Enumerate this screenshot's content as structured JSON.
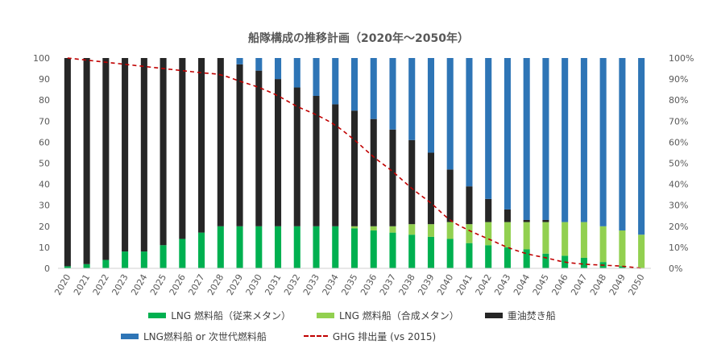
{
  "chart_data": {
    "type": "bar",
    "title": "船隊構成の推移計画（2020年～2050年）",
    "categories": [
      "2020",
      "2021",
      "2022",
      "2023",
      "2024",
      "2025",
      "2026",
      "2027",
      "2028",
      "2029",
      "2030",
      "2031",
      "2032",
      "2033",
      "2034",
      "2035",
      "2036",
      "2037",
      "2038",
      "2039",
      "2040",
      "2041",
      "2042",
      "2043",
      "2044",
      "2045",
      "2046",
      "2047",
      "2048",
      "2049",
      "2050"
    ],
    "stacked": true,
    "ylim": [
      0,
      100
    ],
    "yticks": [
      "0",
      "10",
      "20",
      "30",
      "40",
      "50",
      "60",
      "70",
      "80",
      "90",
      "100"
    ],
    "y2lim": [
      0,
      1
    ],
    "y2ticks": [
      "0%",
      "10%",
      "20%",
      "30%",
      "40%",
      "50%",
      "60%",
      "70%",
      "80%",
      "90%",
      "100%"
    ],
    "grid": false,
    "legend_position": "bottom",
    "series": [
      {
        "name": "LNG 燃料船（従来メタン）",
        "color": "#00b050",
        "values": [
          1,
          2,
          4,
          8,
          8,
          11,
          14,
          17,
          20,
          20,
          20,
          20,
          20,
          20,
          20,
          19,
          18,
          17,
          16,
          15,
          14,
          12,
          11,
          10,
          9,
          7,
          6,
          5,
          3,
          1,
          0
        ]
      },
      {
        "name": "LNG 燃料船（合成メタン）",
        "color": "#92d050",
        "values": [
          0,
          0,
          0,
          0,
          0,
          0,
          0,
          0,
          0,
          0,
          0,
          0,
          0,
          0,
          0,
          1,
          2,
          3,
          5,
          6,
          8,
          9,
          11,
          12,
          13,
          15,
          16,
          17,
          17,
          17,
          16
        ]
      },
      {
        "name": "重油焚き船",
        "color": "#262626",
        "values": [
          99,
          98,
          96,
          92,
          92,
          89,
          86,
          83,
          80,
          77,
          74,
          70,
          66,
          62,
          58,
          55,
          51,
          46,
          40,
          34,
          25,
          18,
          11,
          6,
          1,
          1,
          0,
          0,
          0,
          0,
          0
        ]
      },
      {
        "name": "LNG燃料船 or 次世代燃料船",
        "color": "#2e75b6",
        "values": [
          0,
          0,
          0,
          0,
          0,
          0,
          0,
          0,
          0,
          3,
          6,
          10,
          14,
          18,
          22,
          25,
          29,
          34,
          39,
          45,
          53,
          61,
          67,
          72,
          77,
          77,
          78,
          78,
          80,
          82,
          84
        ]
      }
    ],
    "line_series": {
      "name": "GHG 排出量 (vs 2015)",
      "color": "#c00000",
      "axis": "right",
      "values": [
        1.0,
        0.99,
        0.98,
        0.97,
        0.96,
        0.95,
        0.94,
        0.93,
        0.92,
        0.89,
        0.86,
        0.82,
        0.77,
        0.73,
        0.68,
        0.61,
        0.53,
        0.46,
        0.38,
        0.31,
        0.23,
        0.18,
        0.14,
        0.1,
        0.07,
        0.05,
        0.03,
        0.02,
        0.015,
        0.01,
        0.0
      ]
    }
  }
}
